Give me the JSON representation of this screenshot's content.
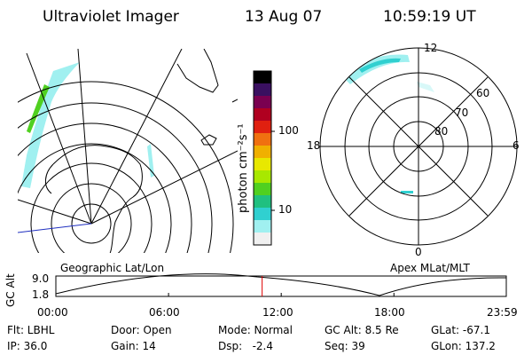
{
  "header": {
    "instrument": "Ultraviolet Imager",
    "date": "13 Aug 07",
    "time": "10:59:19 UT"
  },
  "geo_panel": {
    "label": "Geographic Lat/Lon"
  },
  "apex_panel": {
    "label": "Apex MLat/MLT",
    "mlt_labels": {
      "top": "12",
      "right": "6",
      "bottom": "0",
      "left": "18"
    },
    "lat_labels": [
      "60",
      "70",
      "80"
    ]
  },
  "colorbar": {
    "unit_label": "photon cm⁻²s⁻¹",
    "ticks": [
      "100",
      "10"
    ],
    "colors": [
      "#000000",
      "#3a1060",
      "#7a0050",
      "#b00020",
      "#e02010",
      "#f07010",
      "#f0b000",
      "#e8e800",
      "#a8e800",
      "#50d020",
      "#20c080",
      "#30d0d0",
      "#a0f0f0",
      "#f0f0f0"
    ]
  },
  "timeline": {
    "axis_label": "GC Alt",
    "y_ticks": [
      "9.0",
      "1.8"
    ],
    "x_ticks": [
      "00:00",
      "06:00",
      "12:00",
      "18:00",
      "23:59"
    ],
    "marker_time": "10:59",
    "marker_color": "#e00000"
  },
  "info": {
    "flt": "Flt: LBHL",
    "ip": "IP: 36.0",
    "door": "Door: Open",
    "gain": "Gain: 14",
    "mode": "Mode: Normal",
    "dsp": "Dsp:   -2.4",
    "gcalt": "GC Alt: 8.5 Re",
    "seq": "Seq: 39",
    "glat": "GLat: -67.1",
    "glon": "GLon: 137.2"
  }
}
